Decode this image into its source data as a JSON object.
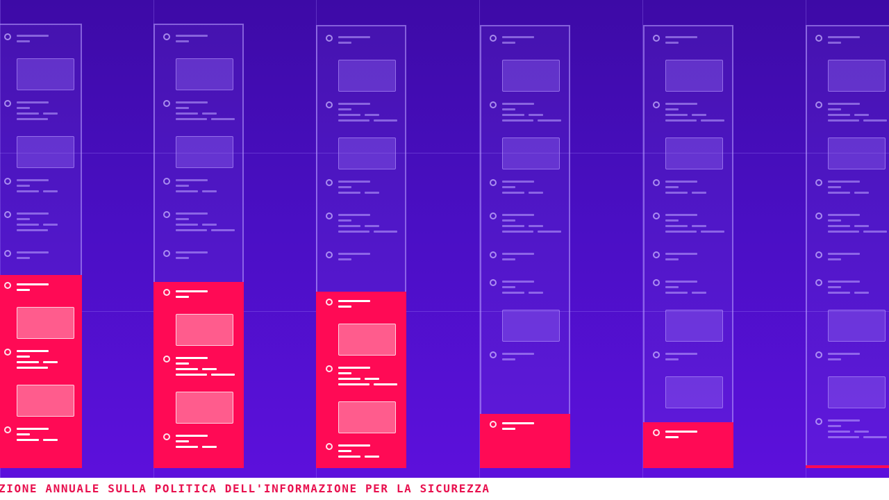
{
  "footer": {
    "label": "ZIONE ANNUALE SULLA POLITICA DELL'INFORMAZIONE PER LA SICUREZZA"
  },
  "colors": {
    "background_top": "#3d0aa6",
    "background_bottom": "#5e10de",
    "highlight": "#ff0a55",
    "footer_text": "#e8104e"
  }
}
